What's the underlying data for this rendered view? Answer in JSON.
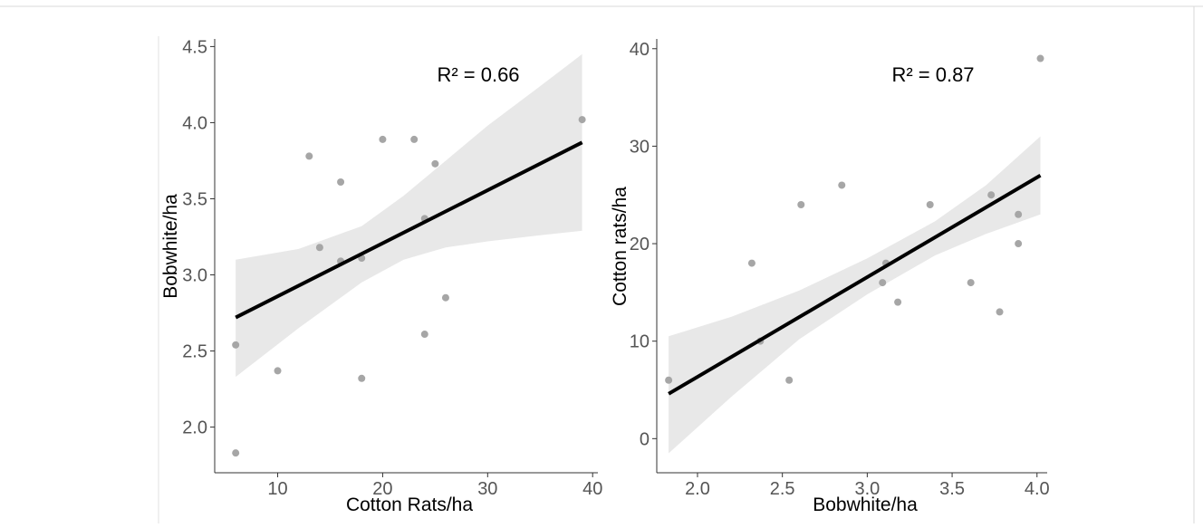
{
  "chart_data": [
    {
      "type": "scatter",
      "title": "",
      "xlabel": "Cotton Rats/ha",
      "ylabel": "Bobwhite/ha",
      "xlim": [
        4,
        40.5
      ],
      "ylim": [
        1.7,
        4.55
      ],
      "xticks": [
        10,
        20,
        30,
        40
      ],
      "yticks": [
        2.0,
        2.5,
        3.0,
        3.5,
        4.0,
        4.5
      ],
      "xtick_labels": [
        "10",
        "20",
        "30",
        "40"
      ],
      "ytick_labels": [
        "2.0",
        "2.5",
        "3.0",
        "3.5",
        "4.0",
        "4.5"
      ],
      "annotation": "R² = 0.66",
      "grid": false,
      "point_color": "#a6a6a6",
      "line_color": "#000000",
      "band_color": "#e8e8e8",
      "points": [
        {
          "x": 6,
          "y": 2.54
        },
        {
          "x": 6,
          "y": 1.83
        },
        {
          "x": 10,
          "y": 2.37
        },
        {
          "x": 13,
          "y": 3.78
        },
        {
          "x": 14,
          "y": 3.18
        },
        {
          "x": 16,
          "y": 3.61
        },
        {
          "x": 16,
          "y": 3.09
        },
        {
          "x": 18,
          "y": 3.11
        },
        {
          "x": 18,
          "y": 2.32
        },
        {
          "x": 20,
          "y": 3.89
        },
        {
          "x": 23,
          "y": 3.89
        },
        {
          "x": 24,
          "y": 3.37
        },
        {
          "x": 24,
          "y": 2.61
        },
        {
          "x": 25,
          "y": 3.73
        },
        {
          "x": 26,
          "y": 2.85
        },
        {
          "x": 39,
          "y": 4.02
        }
      ],
      "fit_line": [
        {
          "x": 6,
          "y": 2.72
        },
        {
          "x": 39,
          "y": 3.87
        }
      ],
      "confidence_band": [
        {
          "x": 6,
          "lo": 2.33,
          "hi": 3.1
        },
        {
          "x": 12,
          "lo": 2.65,
          "hi": 3.17
        },
        {
          "x": 18,
          "lo": 2.95,
          "hi": 3.32
        },
        {
          "x": 22,
          "lo": 3.1,
          "hi": 3.52
        },
        {
          "x": 26,
          "lo": 3.18,
          "hi": 3.75
        },
        {
          "x": 30,
          "lo": 3.22,
          "hi": 3.98
        },
        {
          "x": 35,
          "lo": 3.26,
          "hi": 4.24
        },
        {
          "x": 39,
          "lo": 3.29,
          "hi": 4.45
        }
      ]
    },
    {
      "type": "scatter",
      "title": "",
      "xlabel": "Bobwhite/ha",
      "ylabel": "Cotton rats/ha",
      "xlim": [
        1.76,
        4.06
      ],
      "ylim": [
        -3.5,
        41
      ],
      "xticks": [
        2.0,
        2.5,
        3.0,
        3.5,
        4.0
      ],
      "yticks": [
        0,
        10,
        20,
        30,
        40
      ],
      "xtick_labels": [
        "2.0",
        "2.5",
        "3.0",
        "3.5",
        "4.0"
      ],
      "ytick_labels": [
        "0",
        "10",
        "20",
        "30",
        "40"
      ],
      "annotation": "R² = 0.87",
      "grid": false,
      "point_color": "#a6a6a6",
      "line_color": "#000000",
      "band_color": "#e8e8e8",
      "points": [
        {
          "x": 1.83,
          "y": 6
        },
        {
          "x": 2.32,
          "y": 18
        },
        {
          "x": 2.37,
          "y": 10
        },
        {
          "x": 2.54,
          "y": 6
        },
        {
          "x": 2.61,
          "y": 24
        },
        {
          "x": 2.85,
          "y": 26
        },
        {
          "x": 3.09,
          "y": 16
        },
        {
          "x": 3.11,
          "y": 18
        },
        {
          "x": 3.18,
          "y": 14
        },
        {
          "x": 3.37,
          "y": 24
        },
        {
          "x": 3.61,
          "y": 16
        },
        {
          "x": 3.73,
          "y": 25
        },
        {
          "x": 3.78,
          "y": 13
        },
        {
          "x": 3.89,
          "y": 23
        },
        {
          "x": 3.89,
          "y": 20
        },
        {
          "x": 4.02,
          "y": 39
        }
      ],
      "fit_line": [
        {
          "x": 1.83,
          "y": 4.6
        },
        {
          "x": 4.02,
          "y": 27
        }
      ],
      "confidence_band": [
        {
          "x": 1.83,
          "lo": -1.5,
          "hi": 10.5
        },
        {
          "x": 2.2,
          "lo": 4.3,
          "hi": 12.5
        },
        {
          "x": 2.6,
          "lo": 10.2,
          "hi": 15.2
        },
        {
          "x": 3.0,
          "lo": 14.8,
          "hi": 18.5
        },
        {
          "x": 3.4,
          "lo": 18.8,
          "hi": 22.3
        },
        {
          "x": 3.7,
          "lo": 21.0,
          "hi": 26.0
        },
        {
          "x": 4.02,
          "lo": 23.0,
          "hi": 31.0
        }
      ]
    }
  ]
}
